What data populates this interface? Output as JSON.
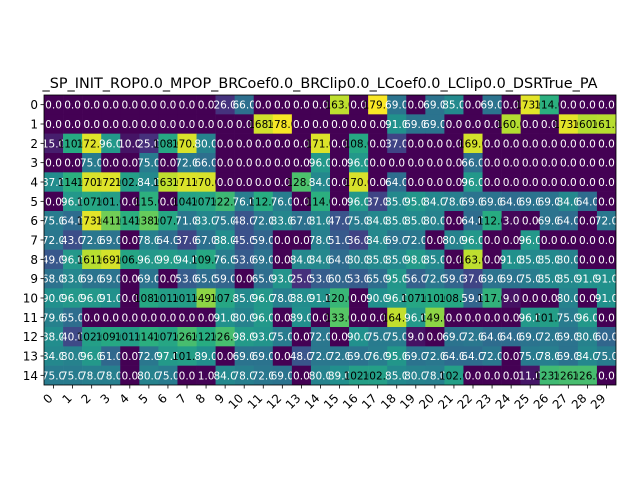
{
  "chart_data": {
    "type": "heatmap",
    "title": "_SP_INIT_ROP0.0_MPOP_BRCoef0.0_BRClip0.0_LCoef0.0_LClip0.0_DSRTrue_PA",
    "xlabel": "",
    "ylabel": "",
    "x": [
      "0",
      "1",
      "2",
      "3",
      "4",
      "5",
      "6",
      "7",
      "8",
      "9",
      "10",
      "11",
      "12",
      "13",
      "14",
      "15",
      "16",
      "17",
      "18",
      "19",
      "20",
      "21",
      "22",
      "23",
      "24",
      "25",
      "26",
      "27",
      "28",
      "29"
    ],
    "y": [
      "0",
      "1",
      "2",
      "3",
      "4",
      "5",
      "6",
      "7",
      "8",
      "9",
      "10",
      "11",
      "12",
      "13",
      "14"
    ],
    "colormap": "viridis",
    "vmin": 0,
    "vmax": 180,
    "values": [
      [
        0,
        0,
        0,
        0,
        0,
        0,
        0,
        0,
        0,
        26,
        66,
        0,
        0,
        0,
        0,
        163,
        0,
        179,
        69,
        0,
        69,
        85,
        0,
        69,
        0,
        173,
        114,
        0,
        0,
        0
      ],
      [
        0,
        0,
        0,
        0,
        0,
        0,
        0,
        0,
        0,
        0,
        0,
        168,
        178,
        0,
        0,
        0,
        0,
        0,
        91,
        69,
        69,
        0,
        0,
        0,
        160,
        0,
        0,
        173,
        160,
        161
      ],
      [
        15,
        110,
        172,
        96,
        10,
        25,
        108,
        170,
        80,
        0,
        0,
        0,
        0,
        0,
        171,
        0,
        108,
        0,
        37,
        0,
        0,
        0,
        169,
        0,
        0,
        0,
        0,
        0,
        0,
        0
      ],
      [
        0,
        0,
        75,
        0,
        0,
        75,
        0,
        72,
        66,
        0,
        0,
        0,
        0,
        0,
        96,
        0,
        96,
        0,
        0,
        0,
        0,
        0,
        66,
        0,
        0,
        0,
        0,
        0,
        0,
        0
      ],
      [
        87,
        114,
        170,
        172,
        102,
        84,
        163,
        171,
        170,
        0,
        0,
        0,
        0,
        128,
        84,
        0,
        170,
        0,
        64,
        0,
        0,
        0,
        96,
        0,
        0,
        0,
        0,
        0,
        0,
        0
      ],
      [
        0,
        96,
        107,
        101,
        0,
        115,
        0,
        104,
        107,
        122,
        76,
        112,
        76,
        0,
        114,
        0,
        96,
        37,
        85,
        95,
        84,
        78,
        69,
        69,
        64,
        69,
        69,
        84,
        64,
        0
      ],
      [
        75,
        64,
        173,
        141,
        114,
        138,
        107,
        71,
        83,
        75,
        48,
        72,
        83,
        67,
        81,
        47,
        75,
        84,
        85,
        85,
        80,
        0,
        64,
        112,
        3,
        0,
        69,
        64,
        0,
        72
      ],
      [
        72,
        43,
        72,
        69,
        0,
        78,
        64,
        37,
        67,
        88,
        45,
        59,
        0,
        0,
        78,
        51,
        36,
        84,
        69,
        72,
        0,
        80,
        96,
        0,
        0,
        96,
        0,
        0,
        0,
        0
      ],
      [
        49,
        96,
        161,
        169,
        106,
        96,
        99,
        94,
        109,
        76,
        53,
        69,
        0,
        84,
        84,
        64,
        80,
        85,
        85,
        98,
        85,
        0,
        163,
        0,
        91,
        85,
        85,
        80,
        0,
        0
      ],
      [
        68,
        83,
        69,
        69,
        0,
        69,
        0,
        53,
        65,
        59,
        0,
        65,
        93,
        25,
        53,
        60,
        53,
        65,
        95,
        56,
        72,
        59,
        37,
        69,
        69,
        75,
        85,
        85,
        91,
        91
      ],
      [
        90,
        96,
        96,
        91,
        0,
        108,
        101,
        101,
        149,
        107,
        85,
        96,
        78,
        88,
        91,
        120,
        0,
        90,
        96,
        107,
        110,
        108,
        59,
        117,
        9,
        0,
        0,
        80,
        0,
        91
      ],
      [
        79,
        65,
        0,
        0,
        0,
        0,
        0,
        0,
        0,
        91,
        80,
        96,
        0,
        89,
        0,
        133,
        0,
        0,
        164,
        96,
        149,
        0,
        0,
        0,
        0,
        96,
        101,
        75,
        96,
        0
      ],
      [
        88,
        40,
        102,
        109,
        101,
        114,
        107,
        126,
        112,
        126,
        98,
        93,
        75,
        0,
        72,
        0,
        90,
        75,
        75,
        9,
        0,
        69,
        72,
        64,
        64,
        69,
        72,
        69,
        80,
        60
      ],
      [
        84,
        80,
        96,
        61,
        0,
        72,
        97,
        101,
        89,
        0,
        69,
        69,
        0,
        48,
        72,
        72,
        69,
        76,
        95,
        69,
        72,
        64,
        64,
        72,
        0,
        75,
        78,
        69,
        84,
        75
      ],
      [
        75,
        75,
        78,
        78,
        0,
        80,
        75,
        0,
        1,
        84,
        78,
        72,
        69,
        0,
        80,
        89,
        102,
        102,
        85,
        80,
        78,
        102,
        0,
        0,
        0,
        11,
        123,
        126,
        126,
        0
      ]
    ]
  }
}
